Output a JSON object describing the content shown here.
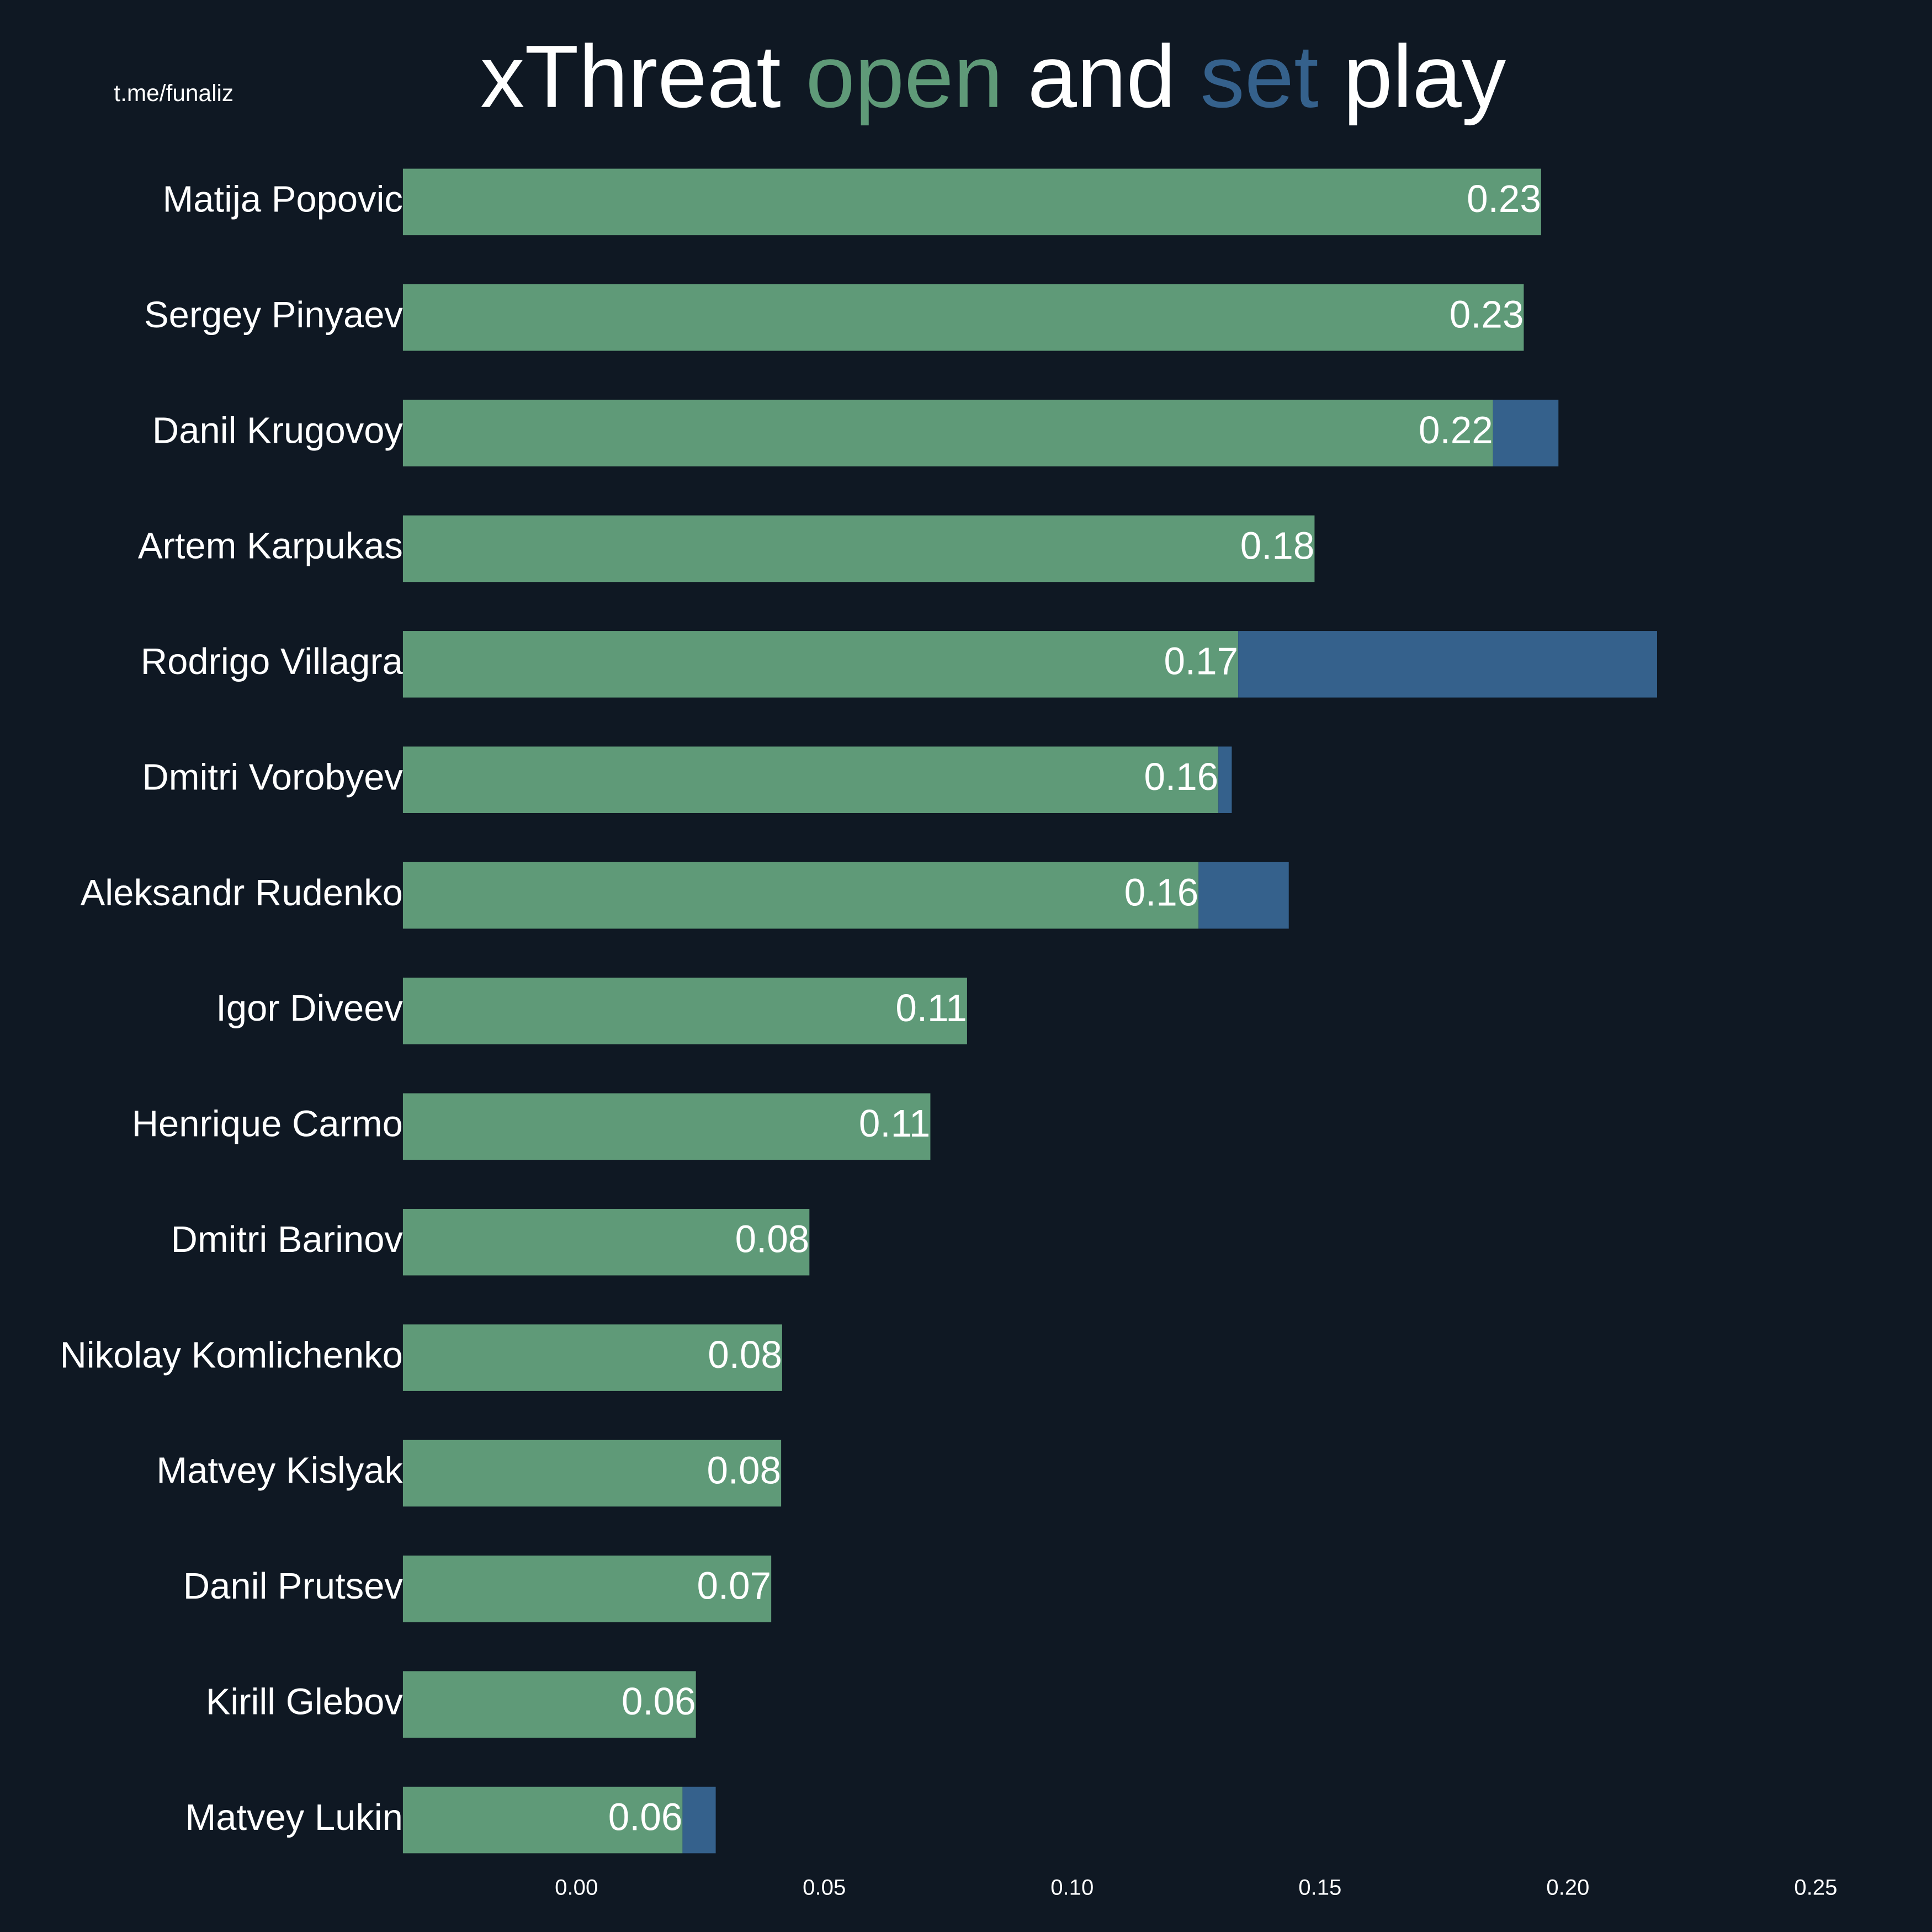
{
  "chart_data": {
    "type": "stacked_barh",
    "title_parts": [
      {
        "text": "xThreat ",
        "color": "#ffffff"
      },
      {
        "text": "open",
        "color": "#5f9a78"
      },
      {
        "text": " and ",
        "color": "#ffffff"
      },
      {
        "text": "set",
        "color": "#35618c"
      },
      {
        "text": " play",
        "color": "#ffffff"
      }
    ],
    "subtitle": "t.me/funaliz",
    "background": "#0f1823",
    "categories": [
      "Matija Popovic",
      "Sergey Pinyaev",
      "Danil Krugovoy",
      "Artem Karpukas",
      "Rodrigo Villagra",
      "Dmitri Vorobyev",
      "Aleksandr Rudenko",
      "Igor Diveev",
      "Henrique Carmo",
      "Dmitri Barinov",
      "Nikolay Komlichenko",
      "Matvey Kislyak",
      "Danil Prutsev",
      "Kirill Glebov",
      "Matvey Lukin"
    ],
    "series": [
      {
        "name": "open",
        "color": "#5f9a78",
        "values": [
          0.2296,
          0.2261,
          0.2199,
          0.1839,
          0.1685,
          0.1645,
          0.1605,
          0.1138,
          0.1064,
          0.082,
          0.0765,
          0.0763,
          0.0743,
          0.0591,
          0.0564
        ],
        "value_labels": [
          "0.23",
          "0.23",
          "0.22",
          "0.18",
          "0.17",
          "0.16",
          "0.16",
          "0.11",
          "0.11",
          "0.08",
          "0.08",
          "0.08",
          "0.07",
          "0.06",
          "0.06"
        ]
      },
      {
        "name": "set",
        "color": "#35618c",
        "values": [
          0,
          0,
          0.0132,
          0,
          0.0845,
          0.0027,
          0.0182,
          0,
          0,
          0,
          0,
          0,
          0,
          0,
          0.0067
        ]
      }
    ],
    "xlim": [
      -0.035,
      0.266
    ],
    "xticks": [
      {
        "value": 0,
        "label": "0.00"
      },
      0.05,
      {
        "value": 0.1,
        "label": "0.10"
      },
      0.15,
      {
        "value": 0.2,
        "label": "0.20"
      },
      0.25
    ]
  }
}
